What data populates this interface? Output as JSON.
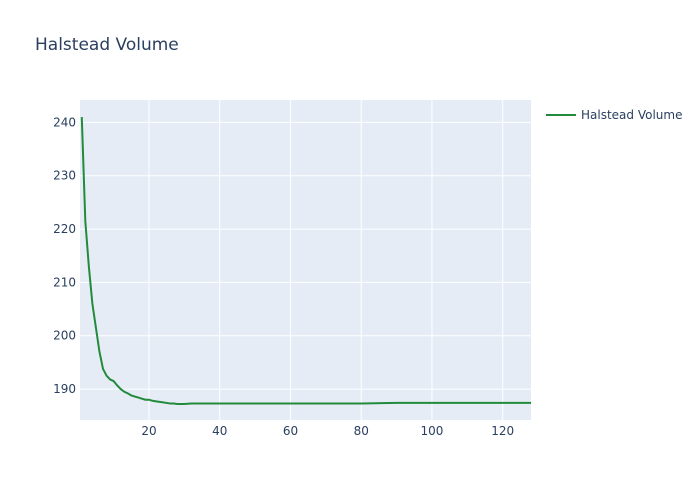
{
  "chart_data": {
    "type": "line",
    "title": "Halstead Volume",
    "xlabel": "",
    "ylabel": "",
    "xlim": [
      0.5,
      128
    ],
    "ylim": [
      184.2,
      244.2
    ],
    "xticks": [
      20,
      40,
      60,
      80,
      100,
      120
    ],
    "yticks": [
      190,
      200,
      210,
      220,
      230,
      240
    ],
    "grid": true,
    "legend_position": "top-right",
    "background_color": "#e5ecf6",
    "series": [
      {
        "name": "Halstead Volume",
        "color": "#228b3b",
        "x": [
          1,
          2,
          3,
          4,
          5,
          6,
          7,
          8,
          9,
          10,
          11,
          12,
          13,
          14,
          15,
          16,
          17,
          18,
          19,
          20,
          21,
          22,
          23,
          24,
          25,
          26,
          27,
          28,
          30,
          32,
          35,
          40,
          50,
          60,
          70,
          80,
          90,
          100,
          110,
          120,
          128
        ],
        "y": [
          241,
          221.5,
          213,
          206,
          201.5,
          197,
          193.8,
          192.5,
          191.8,
          191.5,
          190.7,
          190,
          189.5,
          189.2,
          188.8,
          188.6,
          188.4,
          188.2,
          188,
          188,
          187.8,
          187.7,
          187.6,
          187.5,
          187.4,
          187.3,
          187.3,
          187.2,
          187.2,
          187.3,
          187.3,
          187.3,
          187.3,
          187.3,
          187.3,
          187.3,
          187.4,
          187.4,
          187.4,
          187.4,
          187.4
        ]
      }
    ]
  }
}
